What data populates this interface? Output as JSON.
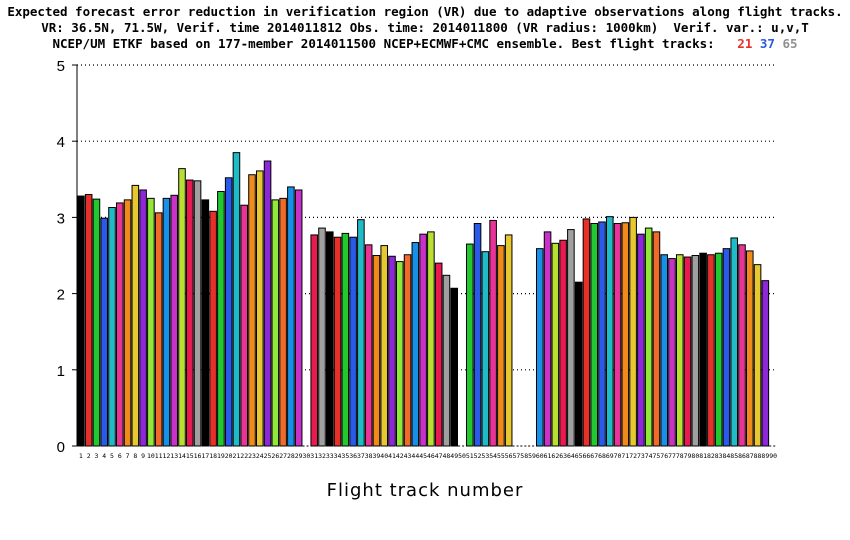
{
  "title_lines": [
    "Expected forecast error reduction in verification region (VR) due to adaptive observations along flight tracks.",
    "VR: 36.5N, 71.5W, Verif. time 2014011812 Obs. time: 2014011800 (VR radius: 1000km)  Verif. var.: u,v,T",
    "NCEP/UM ETKF based on 177-member 2014011500 NCEP+ECMWF+CMC ensemble. Best flight tracks:"
  ],
  "best_tracks": [
    {
      "label": "21",
      "color": "#e8302a"
    },
    {
      "label": "37",
      "color": "#2a5ae8"
    },
    {
      "label": "65",
      "color": "#909090"
    }
  ],
  "chart_data": {
    "type": "bar",
    "title": "Expected forecast error reduction in verification region (VR) due to adaptive observations along flight tracks.",
    "xlabel": "Flight track number",
    "ylabel": "",
    "ylim": [
      0,
      5
    ],
    "yticks": [
      0,
      1,
      2,
      3,
      4,
      5
    ],
    "grid": "horizontal dotted",
    "categories": [
      "1",
      "2",
      "3",
      "4",
      "5",
      "6",
      "7",
      "8",
      "9",
      "10",
      "11",
      "12",
      "13",
      "14",
      "15",
      "16",
      "17",
      "18",
      "19",
      "20",
      "21",
      "22",
      "23",
      "24",
      "25",
      "26",
      "27",
      "28",
      "29",
      "30",
      "31",
      "32",
      "33",
      "34",
      "35",
      "36",
      "37",
      "38",
      "39",
      "40",
      "41",
      "42",
      "43",
      "44",
      "45",
      "46",
      "47",
      "48",
      "49",
      "50",
      "51",
      "52",
      "53",
      "54",
      "55",
      "56",
      "57",
      "58",
      "59",
      "60",
      "61",
      "62",
      "63",
      "64",
      "65",
      "66",
      "67",
      "68",
      "69",
      "70",
      "71",
      "72",
      "73",
      "74",
      "75",
      "76",
      "77",
      "78",
      "79",
      "80",
      "81",
      "82",
      "83",
      "84",
      "85",
      "86",
      "87",
      "88",
      "89",
      "90"
    ],
    "values": [
      3.28,
      3.3,
      3.24,
      2.99,
      3.13,
      3.19,
      3.23,
      3.42,
      3.36,
      3.25,
      3.06,
      3.25,
      3.29,
      3.64,
      3.49,
      3.48,
      3.23,
      3.08,
      3.34,
      3.52,
      3.85,
      3.16,
      3.56,
      3.61,
      3.74,
      3.23,
      3.25,
      3.4,
      3.36,
      null,
      2.77,
      2.86,
      2.81,
      2.74,
      2.79,
      2.74,
      2.97,
      2.64,
      2.5,
      2.63,
      2.49,
      2.42,
      2.51,
      2.67,
      2.78,
      2.81,
      2.4,
      2.24,
      2.07,
      null,
      2.65,
      2.92,
      2.55,
      2.96,
      2.63,
      2.77,
      null,
      null,
      null,
      2.59,
      2.81,
      2.66,
      2.7,
      2.84,
      2.15,
      2.98,
      2.92,
      2.94,
      3.01,
      2.92,
      2.93,
      3.0,
      2.78,
      2.86,
      2.81,
      2.51,
      2.46,
      2.51,
      2.48,
      2.5,
      2.53,
      2.51,
      2.53,
      2.59,
      2.73,
      2.64,
      2.56,
      2.38,
      2.17,
      null
    ]
  }
}
